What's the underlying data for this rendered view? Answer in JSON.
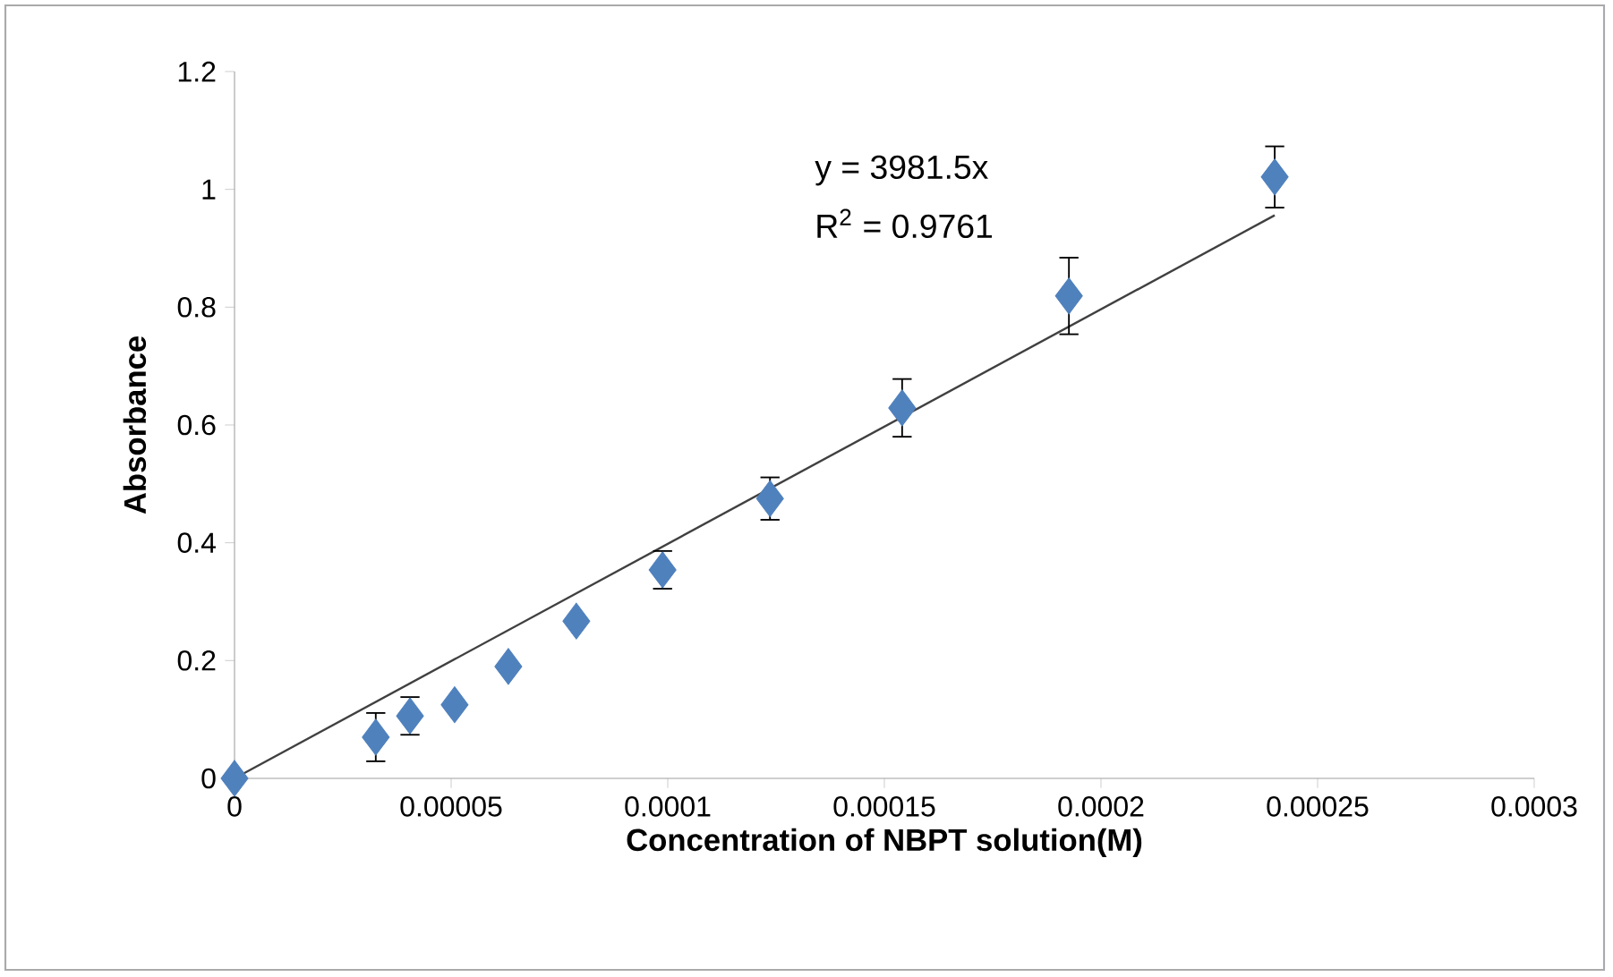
{
  "chart_data": {
    "type": "scatter",
    "xlabel": "Concentration of NBPT solution(M)",
    "ylabel": "Absorbance",
    "annotations": [
      "y = 3981.5x",
      "R$^{2}$ = 0.9761"
    ],
    "x": [
      0,
      3.26e-05,
      4.05e-05,
      5.08e-05,
      6.32e-05,
      7.89e-05,
      9.88e-05,
      0.0001236,
      0.0001541,
      0.0001926,
      0.0002401
    ],
    "series": [
      {
        "color": "#4f81bd",
        "marker": "diamond",
        "values": [
          0,
          0.07,
          0.106,
          0.125,
          0.19,
          0.267,
          0.354,
          0.475,
          0.629,
          0.819,
          1.021
        ],
        "errors": [
          null,
          0.041,
          0.032,
          null,
          null,
          null,
          0.032,
          0.036,
          0.049,
          0.065,
          0.052
        ]
      },
      {
        "type": "line",
        "color": "#404040",
        "marker": "none",
        "x": [
          0,
          0.0002401
        ],
        "values": [
          0,
          0.956
        ]
      }
    ],
    "xlim": [
      0,
      0.0003
    ],
    "ylim": [
      0,
      1.2
    ],
    "xticks": [
      0,
      {
        "value": 5e-05,
        "label": "0.00005"
      },
      {
        "value": 0.0001,
        "label": "0.0001"
      },
      {
        "value": 0.00015,
        "label": "0.00015"
      },
      {
        "value": 0.0002,
        "label": "0.0002"
      },
      {
        "value": 0.00025,
        "label": "0.00025"
      },
      {
        "value": 0.0003,
        "label": "0.0003"
      }
    ],
    "yticks": [
      0,
      0.2,
      0.4,
      0.6,
      0.8,
      1,
      1.2
    ],
    "grid": false
  }
}
